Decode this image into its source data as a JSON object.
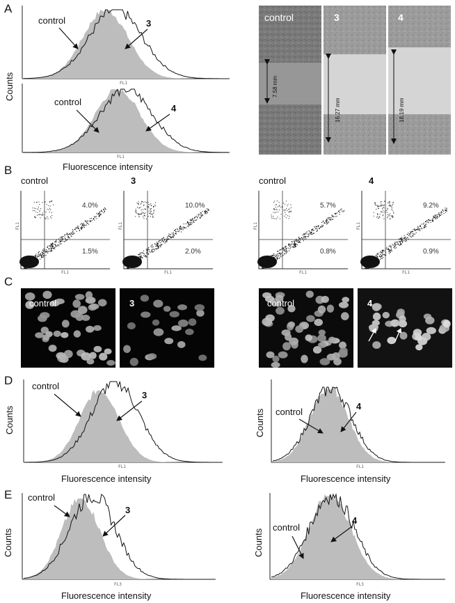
{
  "panels": {
    "A": "A",
    "B": "B",
    "C": "C",
    "D": "D",
    "E": "E"
  },
  "common": {
    "counts": "Counts",
    "fluorescence": "Fluorescence intensity",
    "fl1": "FL1",
    "fl3": "FL3",
    "control": "control",
    "c3": "3",
    "c4": "4"
  },
  "panel_a": {
    "scratch_widths": [
      "7.58 mm",
      "16.27 mm",
      "18.19 mm"
    ]
  },
  "panel_b": {
    "plots": [
      {
        "label": "control",
        "upper": "4.0%",
        "lower": "1.5%"
      },
      {
        "label": "3",
        "upper": "10.0%",
        "lower": "2.0%"
      },
      {
        "label": "control",
        "upper": "5.7%",
        "lower": "0.8%"
      },
      {
        "label": "4",
        "upper": "9.2%",
        "lower": "0.9%"
      }
    ]
  },
  "colors": {
    "gray_fill": "#bdbdbd",
    "line": "#111111"
  }
}
